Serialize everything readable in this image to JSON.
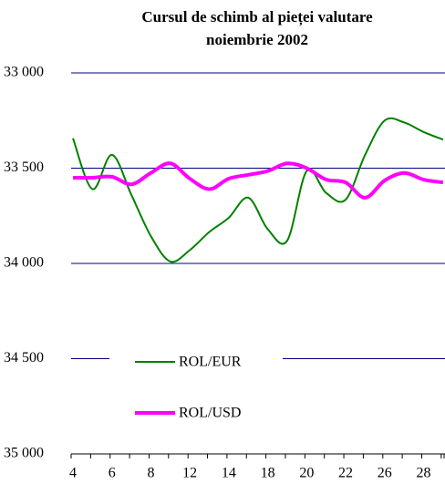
{
  "chart_data": {
    "type": "line",
    "title": "Cursul de schimb al pieței valutare",
    "subtitle": "noiembrie 2002",
    "categories": [
      "4",
      null,
      "6",
      null,
      "8",
      null,
      "12",
      null,
      "14",
      null,
      "18",
      null,
      "20",
      null,
      "22",
      null,
      "26",
      null,
      "28",
      null
    ],
    "series": [
      {
        "name": "ROL/EUR",
        "color": "#008000",
        "width": 2,
        "values": [
          33343,
          33610,
          33430,
          33640,
          33857,
          33990,
          33930,
          33835,
          33760,
          33655,
          33820,
          33880,
          33515,
          33630,
          33665,
          33430,
          33250,
          33260,
          33310,
          33350
        ]
      },
      {
        "name": "ROL/USD",
        "color": "#ff00ff",
        "width": 4,
        "values": [
          33550,
          33550,
          33545,
          33585,
          33525,
          33475,
          33555,
          33610,
          33555,
          33535,
          33515,
          33475,
          33500,
          33560,
          33575,
          33655,
          33565,
          33525,
          33560,
          33575
        ]
      }
    ],
    "ylim": [
      35000,
      33000
    ],
    "yticks": [
      {
        "value": 33000,
        "label": "33 000"
      },
      {
        "value": 33500,
        "label": "33 500"
      },
      {
        "value": 34000,
        "label": "34 000"
      },
      {
        "value": 34500,
        "label": "34 500"
      },
      {
        "value": 35000,
        "label": "35 000"
      }
    ],
    "grid": true
  }
}
